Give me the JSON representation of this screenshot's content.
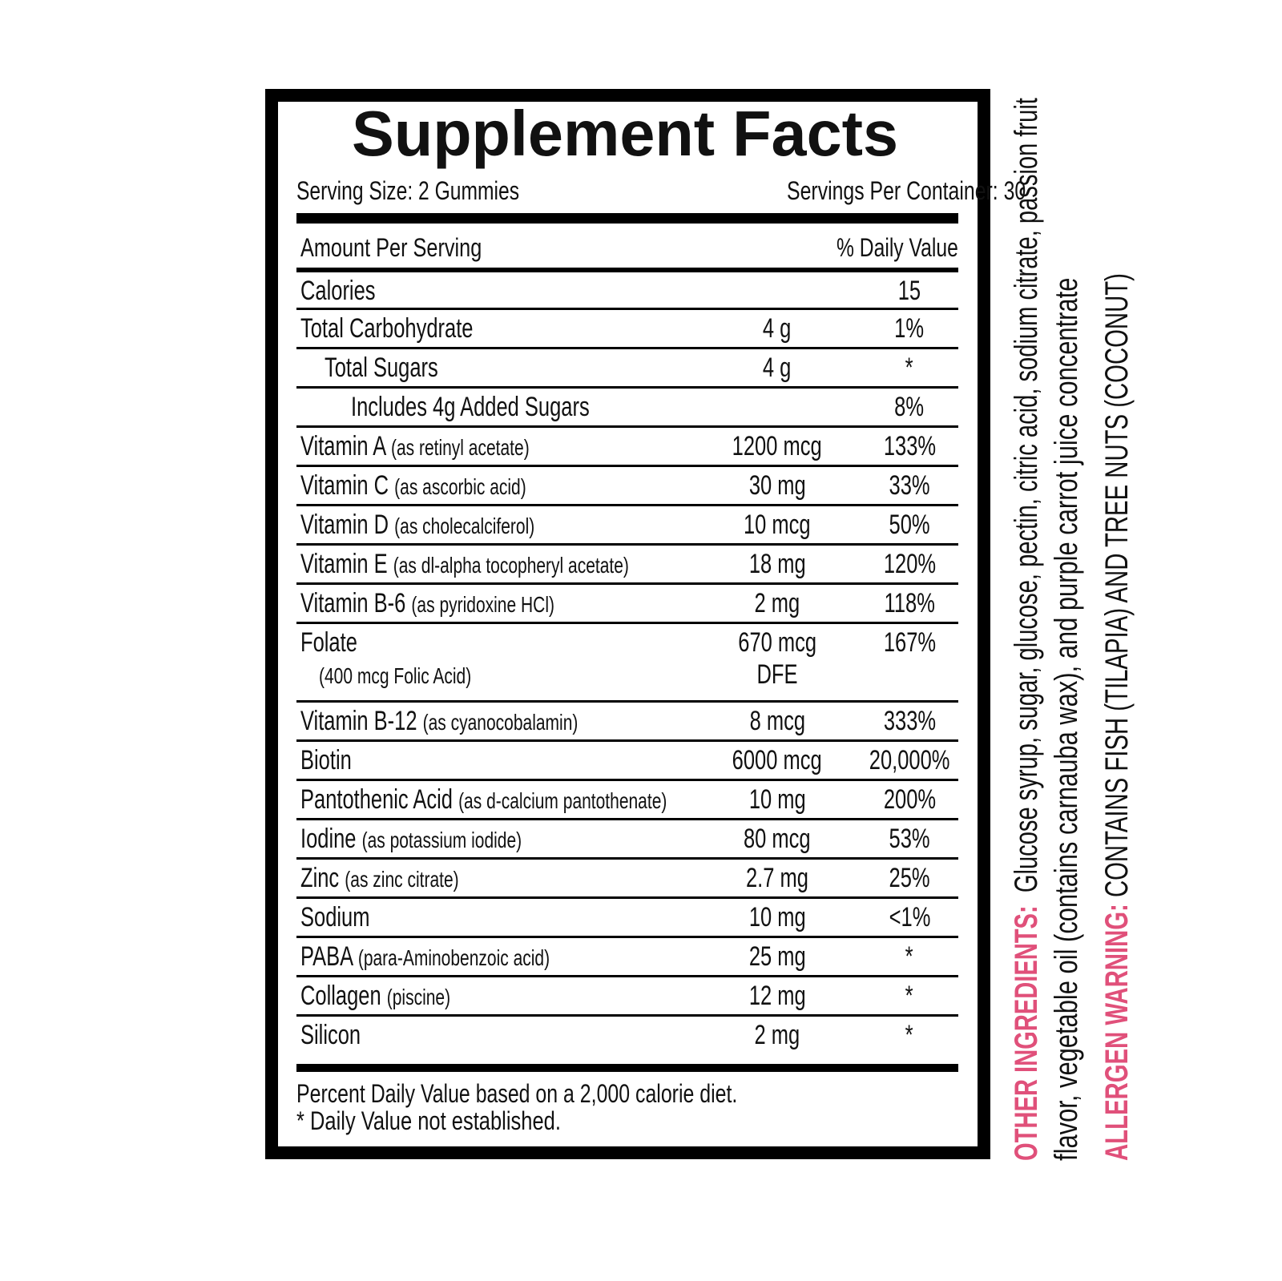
{
  "title": "Supplement Facts",
  "serving_size": "Serving Size: 2 Gummies",
  "servings_per_container": "Servings Per Container: 30",
  "header": {
    "amount_per_serving": "Amount Per Serving",
    "daily_value": "% Daily Value"
  },
  "rows": [
    {
      "name": "Calories",
      "detail": "",
      "amount": "",
      "dv": "15",
      "level": 0
    },
    {
      "name": "Total Carbohydrate",
      "detail": "",
      "amount": "4 g",
      "dv": "1%",
      "level": 0
    },
    {
      "name": "Total Sugars",
      "detail": "",
      "amount": "4 g",
      "dv": "*",
      "level": 1
    },
    {
      "name": "Includes 4g Added Sugars",
      "detail": "",
      "amount": "",
      "dv": "8%",
      "level": 2
    },
    {
      "name": "Vitamin A",
      "detail": "(as retinyl acetate)",
      "amount": "1200 mcg",
      "dv": "133%",
      "level": 0
    },
    {
      "name": "Vitamin C",
      "detail": "(as ascorbic acid)",
      "amount": "30 mg",
      "dv": "33%",
      "level": 0
    },
    {
      "name": "Vitamin D",
      "detail": "(as cholecalciferol)",
      "amount": "10 mcg",
      "dv": "50%",
      "level": 0
    },
    {
      "name": "Vitamin E",
      "detail": "(as dl-alpha tocopheryl acetate)",
      "amount": "18 mg",
      "dv": "120%",
      "level": 0
    },
    {
      "name": "Vitamin B-6",
      "detail": "(as pyridoxine HCl)",
      "amount": "2 mg",
      "dv": "118%",
      "level": 0
    },
    {
      "name": "Folate",
      "detail2": "(400 mcg Folic Acid)",
      "amount": "670 mcg",
      "amount2": "DFE",
      "dv": "167%",
      "level": 0
    },
    {
      "name": "Vitamin B-12",
      "detail": "(as cyanocobalamin)",
      "amount": "8 mcg",
      "dv": "333%",
      "level": 0
    },
    {
      "name": "Biotin",
      "detail": "",
      "amount": "6000 mcg",
      "dv": "20,000%",
      "level": 0
    },
    {
      "name": "Pantothenic Acid",
      "detail": "(as d-calcium pantothenate)",
      "amount": "10 mg",
      "dv": "200%",
      "level": 0
    },
    {
      "name": "Iodine",
      "detail": "(as potassium iodide)",
      "amount": "80 mcg",
      "dv": "53%",
      "level": 0
    },
    {
      "name": "Zinc",
      "detail": "(as zinc citrate)",
      "amount": "2.7 mg",
      "dv": "25%",
      "level": 0
    },
    {
      "name": "Sodium",
      "detail": "",
      "amount": "10 mg",
      "dv": "<1%",
      "level": 0
    },
    {
      "name": "PABA",
      "detail": "(para-Aminobenzoic acid)",
      "amount": "25 mg",
      "dv": "*",
      "level": 0
    },
    {
      "name": "Collagen",
      "detail": "(piscine)",
      "amount": "12 mg",
      "dv": "*",
      "level": 0
    },
    {
      "name": "Silicon",
      "detail": "",
      "amount": "2 mg",
      "dv": "*",
      "level": 0
    }
  ],
  "footnotes": [
    "Percent Daily Value based on a 2,000 calorie diet.",
    "* Daily Value not established."
  ],
  "other_ingredients": {
    "label": "OTHER INGREDIENTS:",
    "line1": "Glucose syrup, sugar, glucose, pectin, citric acid, sodium citrate, passion fruit",
    "line2": "flavor, vegetable oil (contains carnauba wax), and purple carrot juice concentrate"
  },
  "allergen_warning": {
    "label": "ALLERGEN WARNING:",
    "text": "CONTAINS FISH (TILAPIA) AND TREE NUTS (COCONUT)"
  },
  "colors": {
    "accent_pink": "#e0507a",
    "border": "#000000"
  }
}
